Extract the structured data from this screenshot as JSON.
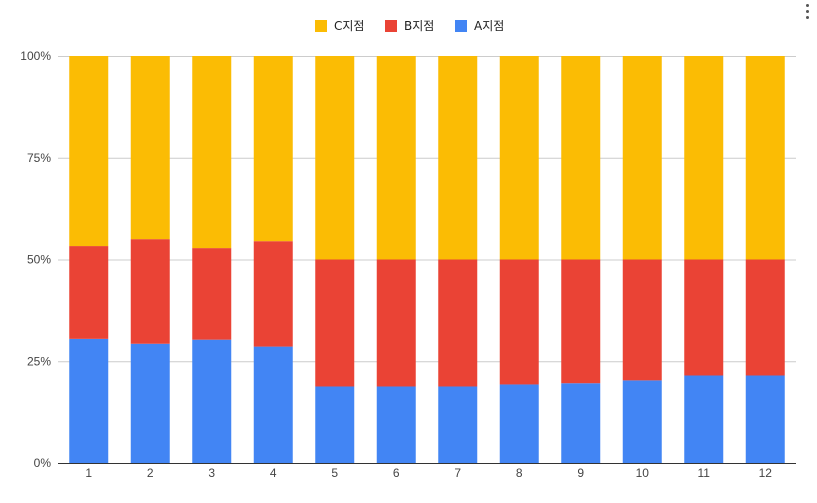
{
  "chart_data": {
    "type": "bar",
    "stacked": true,
    "normalized": true,
    "categories": [
      "1",
      "2",
      "3",
      "4",
      "5",
      "6",
      "7",
      "8",
      "9",
      "10",
      "11",
      "12"
    ],
    "series": [
      {
        "name": "A지점",
        "color": "#4285f4",
        "values": [
          30.5,
          29.3,
          30.3,
          28.6,
          18.8,
          18.8,
          18.8,
          19.3,
          19.6,
          20.3,
          21.5,
          21.5
        ]
      },
      {
        "name": "B지점",
        "color": "#ea4335",
        "values": [
          22.8,
          25.7,
          22.5,
          25.9,
          31.2,
          31.2,
          31.2,
          30.7,
          30.4,
          29.7,
          28.5,
          28.5
        ]
      },
      {
        "name": "C지점",
        "color": "#fbbc04",
        "values": [
          46.7,
          45.0,
          47.2,
          45.5,
          50.0,
          50.0,
          50.0,
          50.0,
          50.0,
          50.0,
          50.0,
          50.0
        ]
      }
    ],
    "legend_order": [
      "C지점",
      "B지점",
      "A지점"
    ],
    "legend_position": "top",
    "ylim": [
      0,
      100
    ],
    "y_ticks": [
      "0%",
      "25%",
      "50%",
      "75%",
      "100%"
    ],
    "grid": true
  }
}
